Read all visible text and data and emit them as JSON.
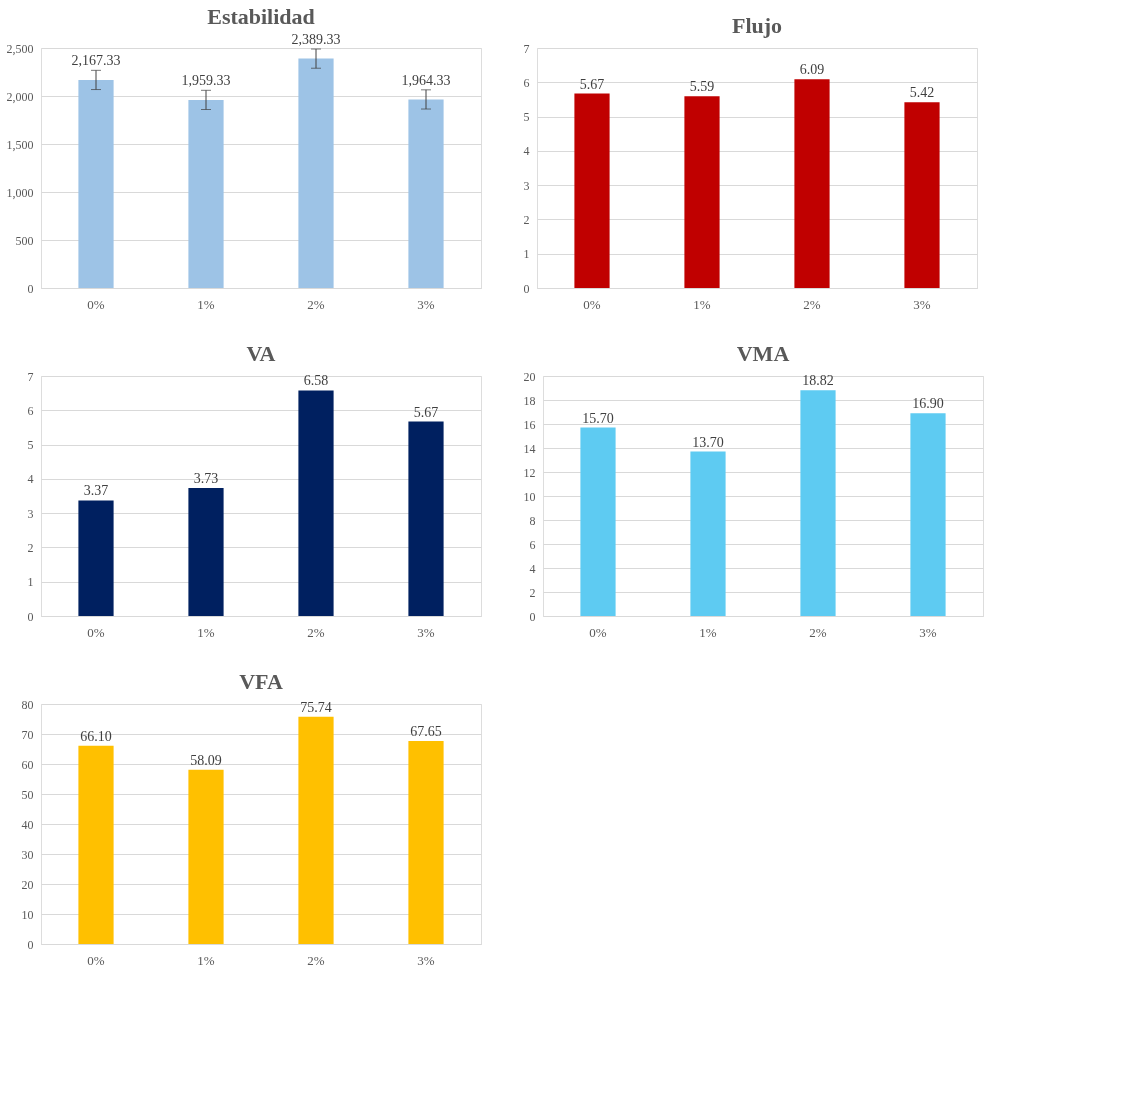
{
  "chart_data": [
    {
      "type": "bar",
      "title": "Estabilidad",
      "categories": [
        "0%",
        "1%",
        "2%",
        "3%"
      ],
      "values": [
        2167.33,
        1959.33,
        2389.33,
        1964.33
      ],
      "errors": [
        100,
        100,
        100,
        100
      ],
      "value_labels": [
        "2,167.33",
        "1,959.33",
        "2,389.33",
        "1,964.33"
      ],
      "color": "#9dc3e6",
      "ylim": [
        0,
        2500
      ],
      "yticks": [
        0,
        500,
        {
          "value": 1000,
          "label": "1,000"
        },
        {
          "value": 1500,
          "label": "1,500"
        },
        {
          "value": 2000,
          "label": "2,000"
        },
        {
          "value": 2500,
          "label": "2,500"
        }
      ],
      "grid": "y",
      "legend": false
    },
    {
      "type": "bar",
      "title": "Flujo",
      "categories": [
        "0%",
        "1%",
        "2%",
        "3%"
      ],
      "values": [
        5.67,
        5.59,
        6.09,
        5.42
      ],
      "value_labels": [
        "5.67",
        "5.59",
        "6.09",
        "5.42"
      ],
      "color": "#c00000",
      "ylim": [
        0,
        7
      ],
      "yticks": [
        0,
        1,
        2,
        3,
        4,
        5,
        6,
        7
      ],
      "grid": "y",
      "legend": false
    },
    {
      "type": "bar",
      "title": "VA",
      "categories": [
        "0%",
        "1%",
        "2%",
        "3%"
      ],
      "values": [
        3.37,
        3.73,
        6.58,
        5.67
      ],
      "value_labels": [
        "3.37",
        "3.73",
        "6.58",
        "5.67"
      ],
      "color": "#002060",
      "ylim": [
        0,
        7
      ],
      "yticks": [
        0,
        1,
        2,
        3,
        4,
        5,
        6,
        7
      ],
      "grid": "y",
      "legend": false
    },
    {
      "type": "bar",
      "title": "VMA",
      "categories": [
        "0%",
        "1%",
        "2%",
        "3%"
      ],
      "values": [
        15.7,
        13.7,
        18.82,
        16.9
      ],
      "value_labels": [
        "15.70",
        "13.70",
        "18.82",
        "16.90"
      ],
      "color": "#5ecbf2",
      "ylim": [
        0,
        20
      ],
      "yticks": [
        0,
        2,
        4,
        6,
        8,
        10,
        12,
        14,
        16,
        18,
        20
      ],
      "grid": "y",
      "legend": false
    },
    {
      "type": "bar",
      "title": "VFA",
      "categories": [
        "0%",
        "1%",
        "2%",
        "3%"
      ],
      "values": [
        66.1,
        58.09,
        75.74,
        67.65
      ],
      "value_labels": [
        "66.10",
        "58.09",
        "75.74",
        "67.65"
      ],
      "color": "#ffc000",
      "ylim": [
        0,
        80
      ],
      "yticks": [
        0,
        10,
        20,
        30,
        40,
        50,
        60,
        70,
        80
      ],
      "grid": "y",
      "legend": false
    }
  ]
}
